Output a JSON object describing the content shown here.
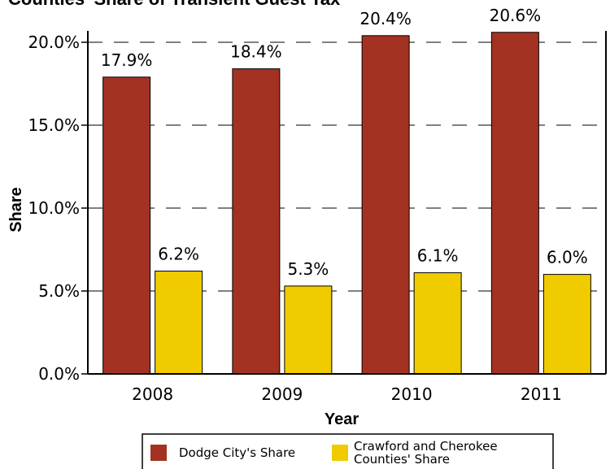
{
  "chart_data": {
    "type": "bar",
    "title": "Counties' Share of Transient Guest Tax",
    "xlabel": "Year",
    "ylabel": "Share",
    "categories": [
      "2008",
      "2009",
      "2010",
      "2011"
    ],
    "ylim": [
      0,
      20
    ],
    "yticks": [
      "0.0%",
      "5.0%",
      "10.0%",
      "15.0%",
      "20.0%"
    ],
    "grid": "dashed horizontal",
    "legend": "bottom",
    "series": [
      {
        "name": "Dodge City's Share",
        "color": "#a33222",
        "values": [
          17.9,
          18.4,
          20.4,
          20.6
        ],
        "labels": [
          "17.9%",
          "18.4%",
          "20.4%",
          "20.6%"
        ]
      },
      {
        "name": "Crawford and Cherokee Counties' Share",
        "name_lines": [
          "Crawford and Cherokee",
          "Counties' Share"
        ],
        "color": "#f0cb00",
        "values": [
          6.2,
          5.3,
          6.1,
          6.0
        ],
        "labels": [
          "6.2%",
          "5.3%",
          "6.1%",
          "6.0%"
        ]
      }
    ]
  }
}
